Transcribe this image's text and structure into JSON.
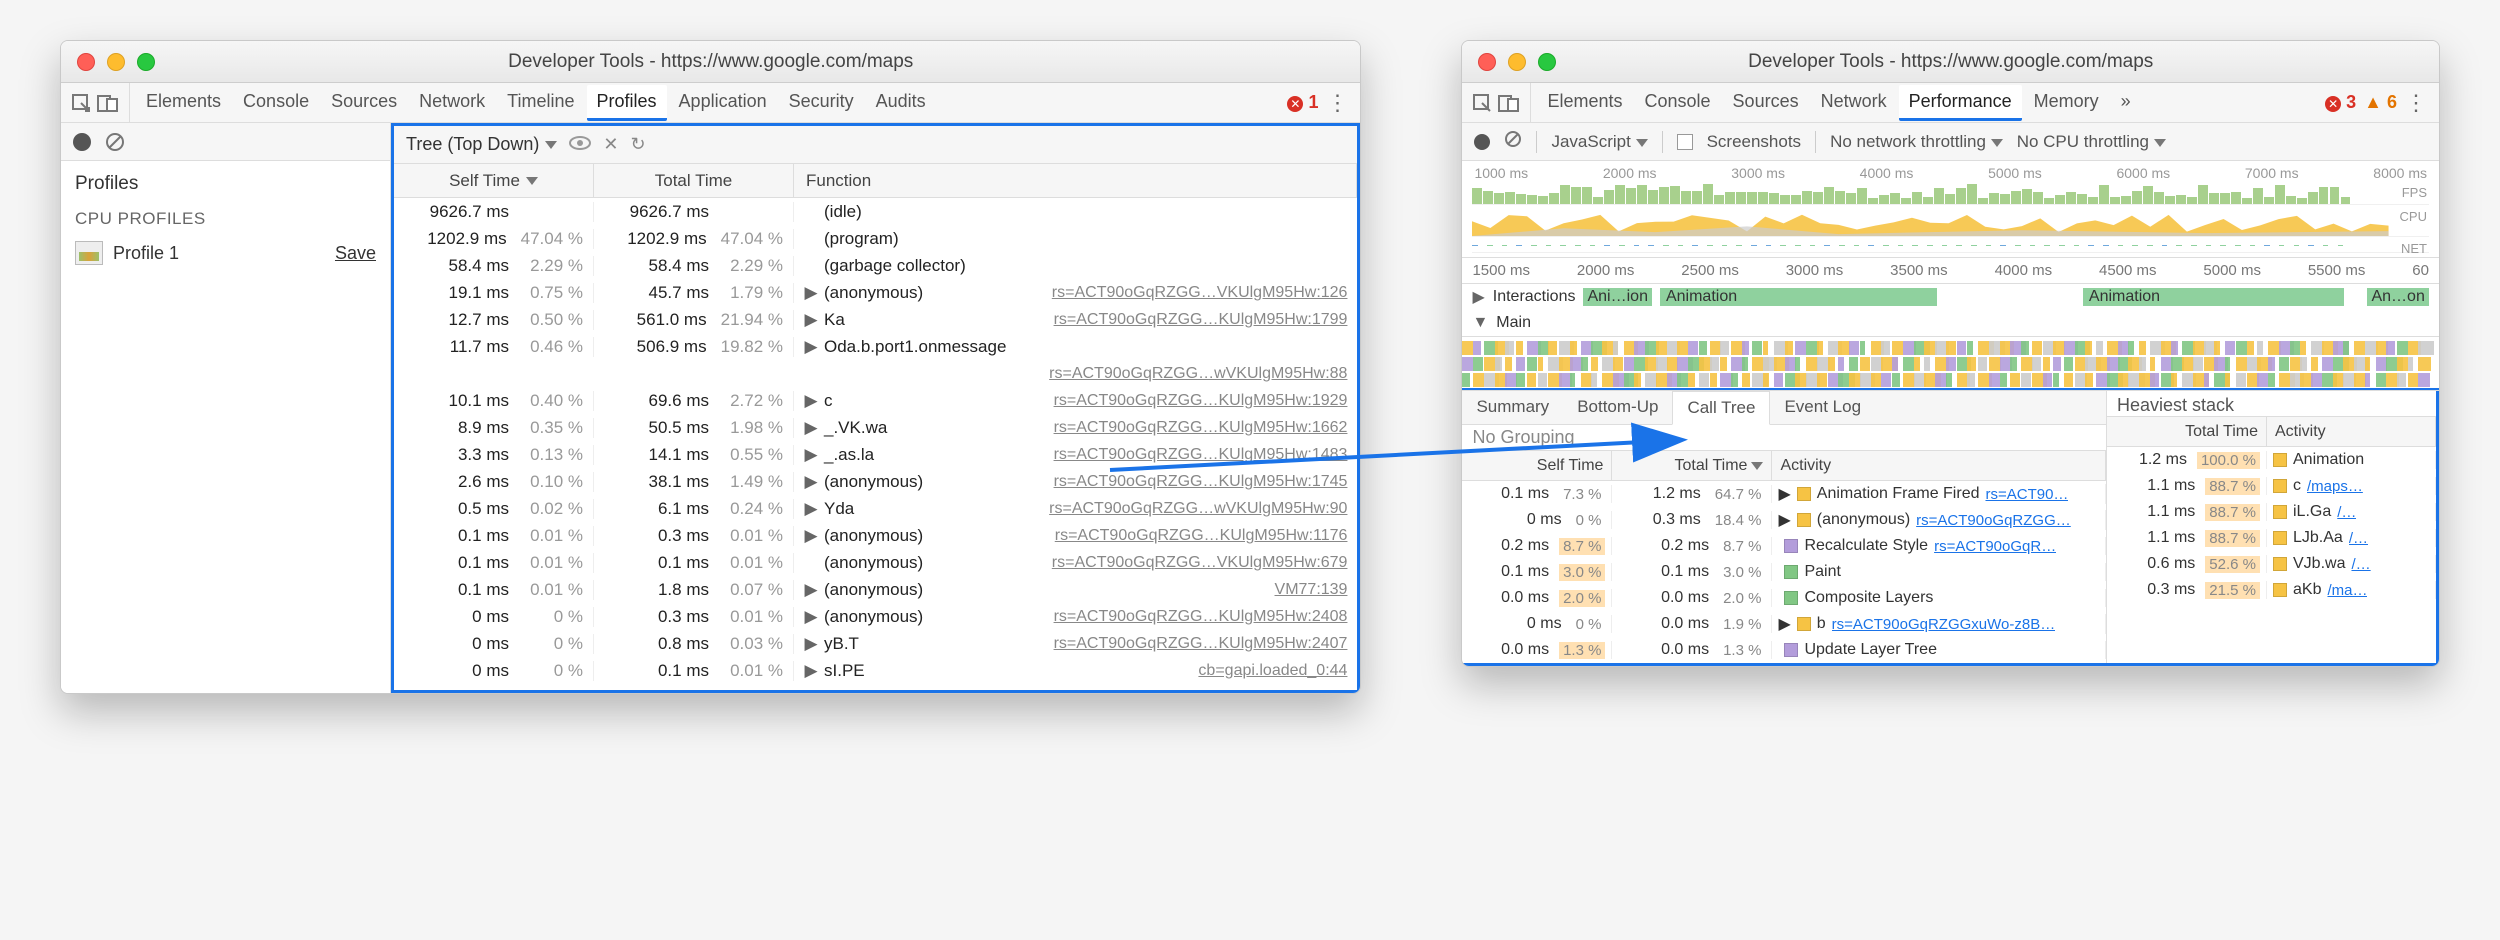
{
  "colors": {
    "highlight_border": "#1a73e8",
    "link": "#888888",
    "link_blue": "#1a73e8",
    "pct_grey": "#999999",
    "fps_green": "#a8d08d",
    "cpu_yellow": "#f6c344",
    "cpu_blue": "#6fa8dc",
    "cpu_grey": "#cccccc",
    "anim_green": "#8fd19e",
    "cat_scripting": "#f6c344",
    "cat_rendering": "#b39ddb",
    "cat_painting": "#81c784",
    "heat_bar": "#ffe0b2"
  },
  "left": {
    "title": "Developer Tools - https://www.google.com/maps",
    "tabs": [
      "Elements",
      "Console",
      "Sources",
      "Network",
      "Timeline",
      "Profiles",
      "Application",
      "Security",
      "Audits"
    ],
    "active_tab": "Profiles",
    "error_count": "1",
    "sidebar": {
      "heading": "Profiles",
      "section": "CPU PROFILES",
      "item_name": "Profile 1",
      "save": "Save"
    },
    "tree_mode": "Tree (Top Down)",
    "headers": {
      "self": "Self Time",
      "total": "Total Time",
      "func": "Function"
    },
    "rows": [
      {
        "s": "9626.7 ms",
        "sp": "",
        "t": "9626.7 ms",
        "tp": "",
        "ex": false,
        "fn": "(idle)",
        "link": ""
      },
      {
        "s": "1202.9 ms",
        "sp": "47.04 %",
        "t": "1202.9 ms",
        "tp": "47.04 %",
        "ex": false,
        "fn": "(program)",
        "link": ""
      },
      {
        "s": "58.4 ms",
        "sp": "2.29 %",
        "t": "58.4 ms",
        "tp": "2.29 %",
        "ex": false,
        "fn": "(garbage collector)",
        "link": ""
      },
      {
        "s": "19.1 ms",
        "sp": "0.75 %",
        "t": "45.7 ms",
        "tp": "1.79 %",
        "ex": true,
        "fn": "(anonymous)",
        "link": "rs=ACT90oGqRZGG…VKUlgM95Hw:126"
      },
      {
        "s": "12.7 ms",
        "sp": "0.50 %",
        "t": "561.0 ms",
        "tp": "21.94 %",
        "ex": true,
        "fn": "Ka",
        "link": "rs=ACT90oGqRZGG…KUlgM95Hw:1799"
      },
      {
        "s": "11.7 ms",
        "sp": "0.46 %",
        "t": "506.9 ms",
        "tp": "19.82 %",
        "ex": true,
        "fn": "Oda.b.port1.onmessage",
        "link": ""
      },
      {
        "s": "",
        "sp": "",
        "t": "",
        "tp": "",
        "ex": false,
        "fn": "",
        "link": "rs=ACT90oGqRZGG…wVKUlgM95Hw:88"
      },
      {
        "s": "10.1 ms",
        "sp": "0.40 %",
        "t": "69.6 ms",
        "tp": "2.72 %",
        "ex": true,
        "fn": "c",
        "link": "rs=ACT90oGqRZGG…KUlgM95Hw:1929"
      },
      {
        "s": "8.9 ms",
        "sp": "0.35 %",
        "t": "50.5 ms",
        "tp": "1.98 %",
        "ex": true,
        "fn": "_.VK.wa",
        "link": "rs=ACT90oGqRZGG…KUlgM95Hw:1662"
      },
      {
        "s": "3.3 ms",
        "sp": "0.13 %",
        "t": "14.1 ms",
        "tp": "0.55 %",
        "ex": true,
        "fn": "_.as.la",
        "link": "rs=ACT90oGqRZGG…KUlgM95Hw:1483"
      },
      {
        "s": "2.6 ms",
        "sp": "0.10 %",
        "t": "38.1 ms",
        "tp": "1.49 %",
        "ex": true,
        "fn": "(anonymous)",
        "link": "rs=ACT90oGqRZGG…KUlgM95Hw:1745"
      },
      {
        "s": "0.5 ms",
        "sp": "0.02 %",
        "t": "6.1 ms",
        "tp": "0.24 %",
        "ex": true,
        "fn": "Yda",
        "link": "rs=ACT90oGqRZGG…wVKUlgM95Hw:90"
      },
      {
        "s": "0.1 ms",
        "sp": "0.01 %",
        "t": "0.3 ms",
        "tp": "0.01 %",
        "ex": true,
        "fn": "(anonymous)",
        "link": "rs=ACT90oGqRZGG…KUlgM95Hw:1176"
      },
      {
        "s": "0.1 ms",
        "sp": "0.01 %",
        "t": "0.1 ms",
        "tp": "0.01 %",
        "ex": false,
        "fn": "(anonymous)",
        "link": "rs=ACT90oGqRZGG…VKUlgM95Hw:679"
      },
      {
        "s": "0.1 ms",
        "sp": "0.01 %",
        "t": "1.8 ms",
        "tp": "0.07 %",
        "ex": true,
        "fn": "(anonymous)",
        "link": "VM77:139"
      },
      {
        "s": "0 ms",
        "sp": "0 %",
        "t": "0.3 ms",
        "tp": "0.01 %",
        "ex": true,
        "fn": "(anonymous)",
        "link": "rs=ACT90oGqRZGG…KUlgM95Hw:2408"
      },
      {
        "s": "0 ms",
        "sp": "0 %",
        "t": "0.8 ms",
        "tp": "0.03 %",
        "ex": true,
        "fn": "yB.T",
        "link": "rs=ACT90oGqRZGG…KUlgM95Hw:2407"
      },
      {
        "s": "0 ms",
        "sp": "0 %",
        "t": "0.1 ms",
        "tp": "0.01 %",
        "ex": true,
        "fn": "sI.PE",
        "link": "cb=gapi.loaded_0:44"
      }
    ]
  },
  "right": {
    "title": "Developer Tools - https://www.google.com/maps",
    "tabs": [
      "Elements",
      "Console",
      "Sources",
      "Network",
      "Performance",
      "Memory"
    ],
    "active_tab": "Performance",
    "errors": "3",
    "warnings": "6",
    "perf_bar": {
      "dropdown": "JavaScript",
      "screenshots": "Screenshots",
      "throttle1": "No network throttling",
      "throttle2": "No CPU throttling"
    },
    "overview_ticks": [
      "1000 ms",
      "2000 ms",
      "3000 ms",
      "4000 ms",
      "5000 ms",
      "6000 ms",
      "7000 ms",
      "8000 ms"
    ],
    "overview_labels": {
      "fps": "FPS",
      "cpu": "CPU",
      "net": "NET"
    },
    "ruler2": [
      "1500 ms",
      "2000 ms",
      "2500 ms",
      "3000 ms",
      "3500 ms",
      "4000 ms",
      "4500 ms",
      "5000 ms",
      "5500 ms",
      "60"
    ],
    "anim": {
      "interactions": "Interactions",
      "ani": "Ani…ion",
      "animation": "Animation",
      "anon": "An…on",
      "main": "Main"
    },
    "tabs2": [
      "Summary",
      "Bottom-Up",
      "Call Tree",
      "Event Log"
    ],
    "active_tab2": "Call Tree",
    "nogrouping": "No Grouping",
    "ct_head": {
      "self": "Self Time",
      "total": "Total Time",
      "act": "Activity"
    },
    "ct_rows": [
      {
        "sm": "0.1 ms",
        "sp": "7.3 %",
        "sh": false,
        "tm": "1.2 ms",
        "tp": "64.7 %",
        "th": false,
        "color": "#f6c344",
        "ex": true,
        "label": "Animation Frame Fired",
        "link": "rs=ACT90…"
      },
      {
        "sm": "0 ms",
        "sp": "0 %",
        "sh": false,
        "tm": "0.3 ms",
        "tp": "18.4 %",
        "th": false,
        "color": "#f6c344",
        "ex": true,
        "label": "(anonymous)",
        "link": "rs=ACT90oGqRZGG…"
      },
      {
        "sm": "0.2 ms",
        "sp": "8.7 %",
        "sh": true,
        "tm": "0.2 ms",
        "tp": "8.7 %",
        "th": false,
        "color": "#b39ddb",
        "ex": false,
        "label": "Recalculate Style",
        "link": "rs=ACT90oGqR…"
      },
      {
        "sm": "0.1 ms",
        "sp": "3.0 %",
        "sh": true,
        "tm": "0.1 ms",
        "tp": "3.0 %",
        "th": false,
        "color": "#81c784",
        "ex": false,
        "label": "Paint",
        "link": ""
      },
      {
        "sm": "0.0 ms",
        "sp": "2.0 %",
        "sh": true,
        "tm": "0.0 ms",
        "tp": "2.0 %",
        "th": false,
        "color": "#81c784",
        "ex": false,
        "label": "Composite Layers",
        "link": ""
      },
      {
        "sm": "0 ms",
        "sp": "0 %",
        "sh": false,
        "tm": "0.0 ms",
        "tp": "1.9 %",
        "th": false,
        "color": "#f6c344",
        "ex": true,
        "label": "b",
        "link": "rs=ACT90oGqRZGGxuWo-z8B…"
      },
      {
        "sm": "0.0 ms",
        "sp": "1.3 %",
        "sh": true,
        "tm": "0.0 ms",
        "tp": "1.3 %",
        "th": false,
        "color": "#b39ddb",
        "ex": false,
        "label": "Update Layer Tree",
        "link": ""
      }
    ],
    "heaviest": {
      "title": "Heaviest stack",
      "head": {
        "total": "Total Time",
        "act": "Activity"
      },
      "rows": [
        {
          "tm": "1.2 ms",
          "tp": "100.0 %",
          "color": "#f6c344",
          "label": "Animation",
          "link": ""
        },
        {
          "tm": "1.1 ms",
          "tp": "88.7 %",
          "color": "#f6c344",
          "label": "c",
          "link": "/maps…"
        },
        {
          "tm": "1.1 ms",
          "tp": "88.7 %",
          "color": "#f6c344",
          "label": "iL.Ga",
          "link": "/…"
        },
        {
          "tm": "1.1 ms",
          "tp": "88.7 %",
          "color": "#f6c344",
          "label": "LJb.Aa",
          "link": "/…"
        },
        {
          "tm": "0.6 ms",
          "tp": "52.6 %",
          "color": "#f6c344",
          "label": "VJb.wa",
          "link": "/…"
        },
        {
          "tm": "0.3 ms",
          "tp": "21.5 %",
          "color": "#f6c344",
          "label": "aKb",
          "link": "/ma…"
        }
      ]
    }
  }
}
